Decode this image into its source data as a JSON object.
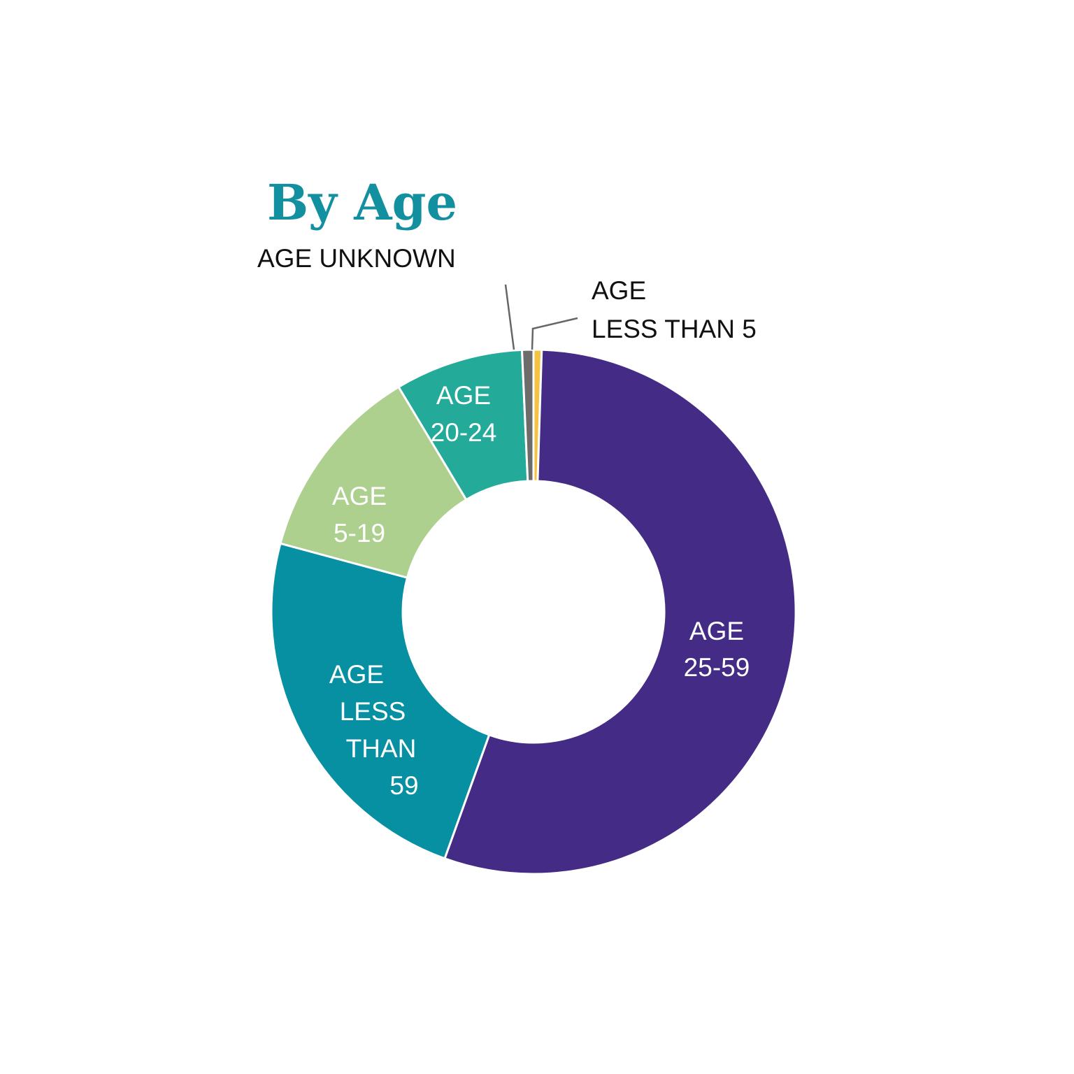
{
  "chart_data": {
    "type": "pie",
    "variant": "donut",
    "title": "By Age",
    "title_color": "#12909f",
    "slices": [
      {
        "label_lines": [
          "AGE LESS THAN 5"
        ],
        "value": 0.5,
        "color": "#f5c242"
      },
      {
        "label_lines": [
          "AGE",
          "25-59"
        ],
        "value": 55.0,
        "color": "#442c86"
      },
      {
        "label_lines": [
          "AGE",
          "LESS",
          "THAN",
          "59"
        ],
        "value": 23.7,
        "color": "#0690a2"
      },
      {
        "label_lines": [
          "AGE",
          "5-19"
        ],
        "value": 12.2,
        "color": "#aed08e"
      },
      {
        "label_lines": [
          "AGE",
          "20-24"
        ],
        "value": 7.9,
        "color": "#24aa99"
      },
      {
        "label_lines": [
          "AGE UNKNOWN"
        ],
        "value": 0.7,
        "color": "#6c6c6c"
      }
    ],
    "outside_labels": [
      {
        "lines": [
          "AGE UNKNOWN"
        ]
      },
      {
        "lines": [
          "AGE",
          "LESS THAN 5"
        ]
      }
    ]
  }
}
